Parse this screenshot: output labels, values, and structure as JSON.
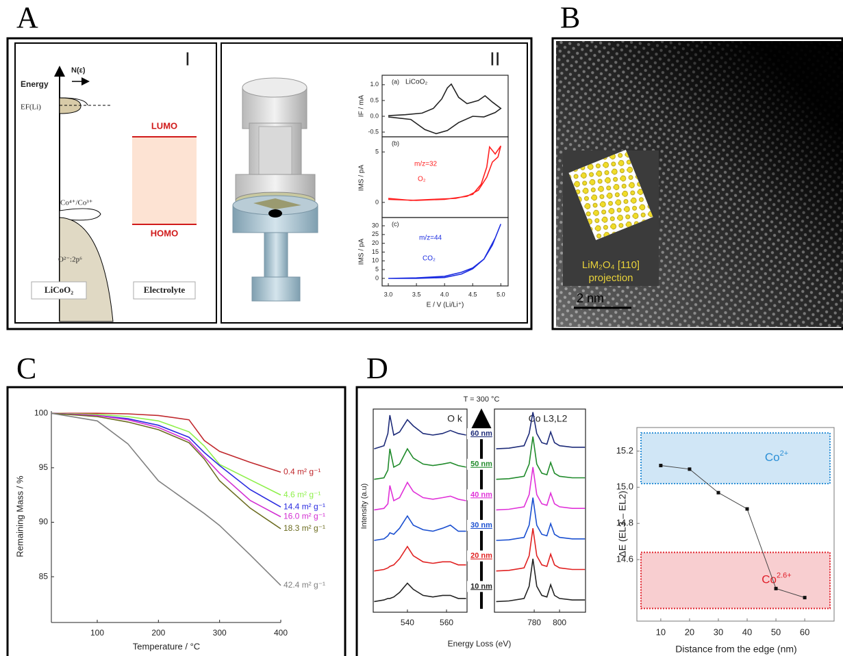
{
  "figure": {
    "panel_labels": {
      "a": "A",
      "b": "B",
      "c": "C",
      "d": "D"
    }
  },
  "panel_a": {
    "part_1": "I",
    "part_2": "II",
    "energy_axis": "Energy",
    "dos_axis": "N(ε)",
    "fermi_level": "EF(Li)",
    "redox_couple": "Co⁴⁺/Co³⁺",
    "o_band": "O²⁻:2p⁶",
    "lumo": "LUMO",
    "homo": "HOMO",
    "cathode": "LiCoO₂",
    "electrolyte": "Electrolyte"
  },
  "panel_b": {
    "inset_phase": "LiM₂O₄ [110]",
    "inset_caption": "projection",
    "scale_bar": "2 nm"
  },
  "panel_d": {
    "temperature": "T = 300 °C",
    "ylabel": "Intensity (a.u)",
    "xlabel": "Energy Loss (eV)"
  },
  "chart_data": [
    {
      "type": "line",
      "xlabel": "Temperature / °C",
      "ylabel": "Remaining Mass / %",
      "x": [
        25,
        100,
        150,
        200,
        250,
        275,
        300,
        350,
        400
      ],
      "xlim": [
        25,
        400
      ],
      "xticks": [
        100,
        200,
        300,
        400
      ],
      "ylim": [
        80.8,
        100.2
      ],
      "yticks": [
        85,
        90,
        95,
        100
      ],
      "series": [
        {
          "name": "0.4 m² g⁻¹",
          "color": "#c0282d",
          "values": [
            100,
            100,
            99.95,
            99.8,
            99.4,
            97.5,
            96.5,
            95.5,
            94.6
          ]
        },
        {
          "name": "4.6 m² g⁻¹",
          "color": "#8ef04a",
          "values": [
            100,
            99.9,
            99.7,
            99.3,
            98.3,
            97,
            95.3,
            93.9,
            92.5
          ]
        },
        {
          "name": "14.4 m² g⁻¹",
          "color": "#2a2ae0",
          "values": [
            100,
            99.8,
            99.5,
            98.9,
            97.8,
            96.4,
            95.2,
            93,
            91.4
          ]
        },
        {
          "name": "16.0 m² g⁻¹",
          "color": "#d22ed2",
          "values": [
            100,
            99.8,
            99.4,
            98.7,
            97.5,
            96,
            94.5,
            92,
            90.5
          ]
        },
        {
          "name": "18.3 m² g⁻¹",
          "color": "#6b6b1f",
          "values": [
            100,
            99.7,
            99.2,
            98.5,
            97.3,
            95.8,
            93.8,
            91.3,
            89.4
          ]
        },
        {
          "name": "42.4 m² g⁻¹",
          "color": "#7f7f7f",
          "values": [
            100,
            99.3,
            97.2,
            93.8,
            91.8,
            90.8,
            89.7,
            87,
            84.2
          ]
        }
      ]
    },
    {
      "type": "line",
      "tag": "(a)",
      "annotations": [
        "LiCoO₂"
      ],
      "ylabel": "IF / mA",
      "x": [
        3.0,
        3.3,
        3.6,
        3.8,
        3.95,
        4.05,
        4.12,
        4.25,
        4.4,
        4.6,
        4.72,
        4.85,
        5.0,
        4.9,
        4.7,
        4.5,
        4.25,
        4.05,
        3.85,
        3.65,
        3.4,
        3.0
      ],
      "xlim": [
        2.89,
        5.13
      ],
      "ylim": [
        -0.65,
        1.3
      ],
      "yticks": [
        {
          "value": 1,
          "label": "1.0"
        },
        0.5,
        {
          "value": 0,
          "label": "0.0"
        },
        -0.5
      ],
      "series": [
        {
          "color": "#222222",
          "values": [
            0.02,
            0.05,
            0.1,
            0.25,
            0.55,
            0.9,
            1.02,
            0.6,
            0.4,
            0.5,
            0.65,
            0.45,
            0.25,
            0.12,
            -0.02,
            0.0,
            -0.2,
            -0.45,
            -0.55,
            -0.42,
            -0.1,
            -0.02
          ]
        }
      ]
    },
    {
      "type": "line",
      "tag": "(b)",
      "annotations": [
        "m/z=32",
        "O₂"
      ],
      "ylabel": "IMS / pA",
      "x": [
        3.0,
        3.4,
        3.8,
        4.2,
        4.5,
        4.65,
        4.75,
        4.8,
        4.9,
        5.0,
        4.95,
        4.85,
        4.75,
        4.6,
        4.4,
        4.0,
        3.5,
        3.0
      ],
      "xlim": [
        2.89,
        5.13
      ],
      "ylim": [
        -1.5,
        6.5
      ],
      "yticks": [
        0,
        5
      ],
      "series": [
        {
          "color": "#ff2020",
          "values": [
            0.4,
            0.2,
            0.3,
            0.4,
            0.8,
            1.8,
            3.5,
            5.5,
            4.8,
            5.6,
            4.5,
            4.0,
            2.5,
            1.2,
            0.6,
            0.3,
            0.2,
            0.3
          ]
        }
      ]
    },
    {
      "type": "line",
      "tag": "(c)",
      "annotations": [
        "m/z=44",
        "CO₂"
      ],
      "ylabel": "IMS / pA",
      "xlabel": "E / V (Li/Li⁺)",
      "x": [
        3.0,
        3.5,
        4.0,
        4.3,
        4.5,
        4.7,
        4.85,
        5.0,
        4.9,
        4.7,
        4.5,
        4.3,
        4.0,
        3.5,
        3.0
      ],
      "xlim": [
        2.89,
        5.13
      ],
      "xticks": [
        {
          "value": 3,
          "label": "3.0"
        },
        3.5,
        {
          "value": 4,
          "label": "4.0"
        },
        4.5,
        {
          "value": 5,
          "label": "5.0"
        }
      ],
      "ylim": [
        -4.3,
        34.7
      ],
      "yticks": [
        0,
        5,
        10,
        15,
        20,
        25,
        30
      ],
      "series": [
        {
          "color": "#1c2de0",
          "values": [
            0,
            0,
            0.5,
            2.5,
            5.5,
            11,
            19,
            31,
            23,
            11,
            6,
            3.5,
            1.2,
            0.3,
            0
          ]
        }
      ]
    },
    {
      "type": "line",
      "title": "O k",
      "x": [
        523,
        528,
        530,
        531,
        533,
        536,
        540,
        543,
        548,
        553,
        558,
        562,
        566,
        570
      ],
      "xlim": [
        522.5,
        570.5
      ],
      "xticks": [
        540,
        560
      ],
      "ylim": [
        -0.35,
        6.3
      ],
      "series": [
        {
          "name": "10 nm",
          "color": "#222222",
          "values": [
            0,
            0.05,
            0.1,
            0.1,
            0.15,
            0.3,
            0.6,
            0.4,
            0.2,
            0.15,
            0.2,
            0.2,
            0.1,
            0.1
          ]
        },
        {
          "name": "20 nm",
          "color": "#e02020",
          "values": [
            1,
            1.05,
            1.1,
            1.15,
            1.2,
            1.4,
            1.8,
            1.5,
            1.3,
            1.25,
            1.3,
            1.3,
            1.2,
            1.2
          ]
        },
        {
          "name": "30 nm",
          "color": "#1a4fd0",
          "values": [
            2,
            2.05,
            2.15,
            2.25,
            2.2,
            2.4,
            2.8,
            2.5,
            2.35,
            2.3,
            2.4,
            2.5,
            2.3,
            2.3
          ]
        },
        {
          "name": "40 nm",
          "color": "#e030d8",
          "values": [
            3,
            3.05,
            3.2,
            3.8,
            3.3,
            3.4,
            3.9,
            3.6,
            3.4,
            3.35,
            3.4,
            3.45,
            3.35,
            3.3
          ]
        },
        {
          "name": "50 nm",
          "color": "#1f8a2a",
          "values": [
            4,
            4.05,
            4.3,
            5.0,
            4.4,
            4.5,
            5.0,
            4.7,
            4.5,
            4.45,
            4.5,
            4.55,
            4.45,
            4.4
          ]
        },
        {
          "name": "60 nm",
          "color": "#1c2a78",
          "values": [
            5,
            5.1,
            5.5,
            6.1,
            5.45,
            5.55,
            5.95,
            5.75,
            5.5,
            5.45,
            5.5,
            5.6,
            5.5,
            5.45
          ]
        }
      ]
    },
    {
      "type": "line",
      "title": "Co L3,L2",
      "x": [
        750,
        760,
        772,
        776,
        779,
        782,
        786,
        790,
        793,
        796,
        800,
        810,
        820
      ],
      "xlim": [
        748.6,
        820.5
      ],
      "xticks": [
        780,
        800
      ],
      "ylim": [
        -0.35,
        6.3
      ],
      "series": [
        {
          "color": "#222222",
          "values": [
            0,
            0.02,
            0.1,
            0.5,
            1.4,
            0.5,
            0.2,
            0.15,
            0.55,
            0.2,
            0.1,
            0.05,
            0.05
          ]
        },
        {
          "color": "#e02020",
          "values": [
            1,
            1.02,
            1.1,
            1.5,
            2.4,
            1.5,
            1.2,
            1.15,
            1.55,
            1.2,
            1.1,
            1.05,
            1.05
          ]
        },
        {
          "color": "#1a4fd0",
          "values": [
            2,
            2.02,
            2.1,
            2.5,
            3.4,
            2.5,
            2.2,
            2.15,
            2.55,
            2.2,
            2.1,
            2.05,
            2.05
          ]
        },
        {
          "color": "#e030d8",
          "values": [
            3,
            3.02,
            3.1,
            3.5,
            4.4,
            3.5,
            3.2,
            3.15,
            3.55,
            3.2,
            3.1,
            3.05,
            3.05
          ]
        },
        {
          "color": "#1f8a2a",
          "values": [
            4,
            4.02,
            4.1,
            4.5,
            5.4,
            4.5,
            4.2,
            4.15,
            4.55,
            4.2,
            4.1,
            4.05,
            4.05
          ]
        },
        {
          "color": "#1c2a78",
          "values": [
            5,
            5.02,
            5.1,
            5.5,
            6.2,
            5.5,
            5.2,
            5.15,
            5.55,
            5.2,
            5.1,
            5.05,
            5.05
          ]
        }
      ]
    },
    {
      "type": "line",
      "markers": true,
      "xlabel": "Distance from the edge (nm)",
      "ylabel": "ΔE (EL3 – EL2)",
      "x": [
        10,
        20,
        30,
        40,
        50,
        60
      ],
      "xlim": [
        1.7,
        70.2
      ],
      "xticks": [
        10,
        20,
        30,
        40,
        50,
        60
      ],
      "ylim": [
        14.26,
        15.33
      ],
      "yticks": [
        14.6,
        14.8,
        {
          "value": 15,
          "label": "15.0"
        },
        15.2
      ],
      "bands": [
        {
          "label": "Co",
          "sup": "2+",
          "range": [
            15.02,
            15.3
          ],
          "color": "#2b8fd6"
        },
        {
          "label": "Co",
          "sup": "2.6+",
          "range": [
            14.33,
            14.64
          ],
          "color": "#e0202a"
        }
      ],
      "series": [
        {
          "color": "#444444",
          "values": [
            15.12,
            15.1,
            14.97,
            14.88,
            14.44,
            14.39
          ]
        }
      ]
    }
  ]
}
